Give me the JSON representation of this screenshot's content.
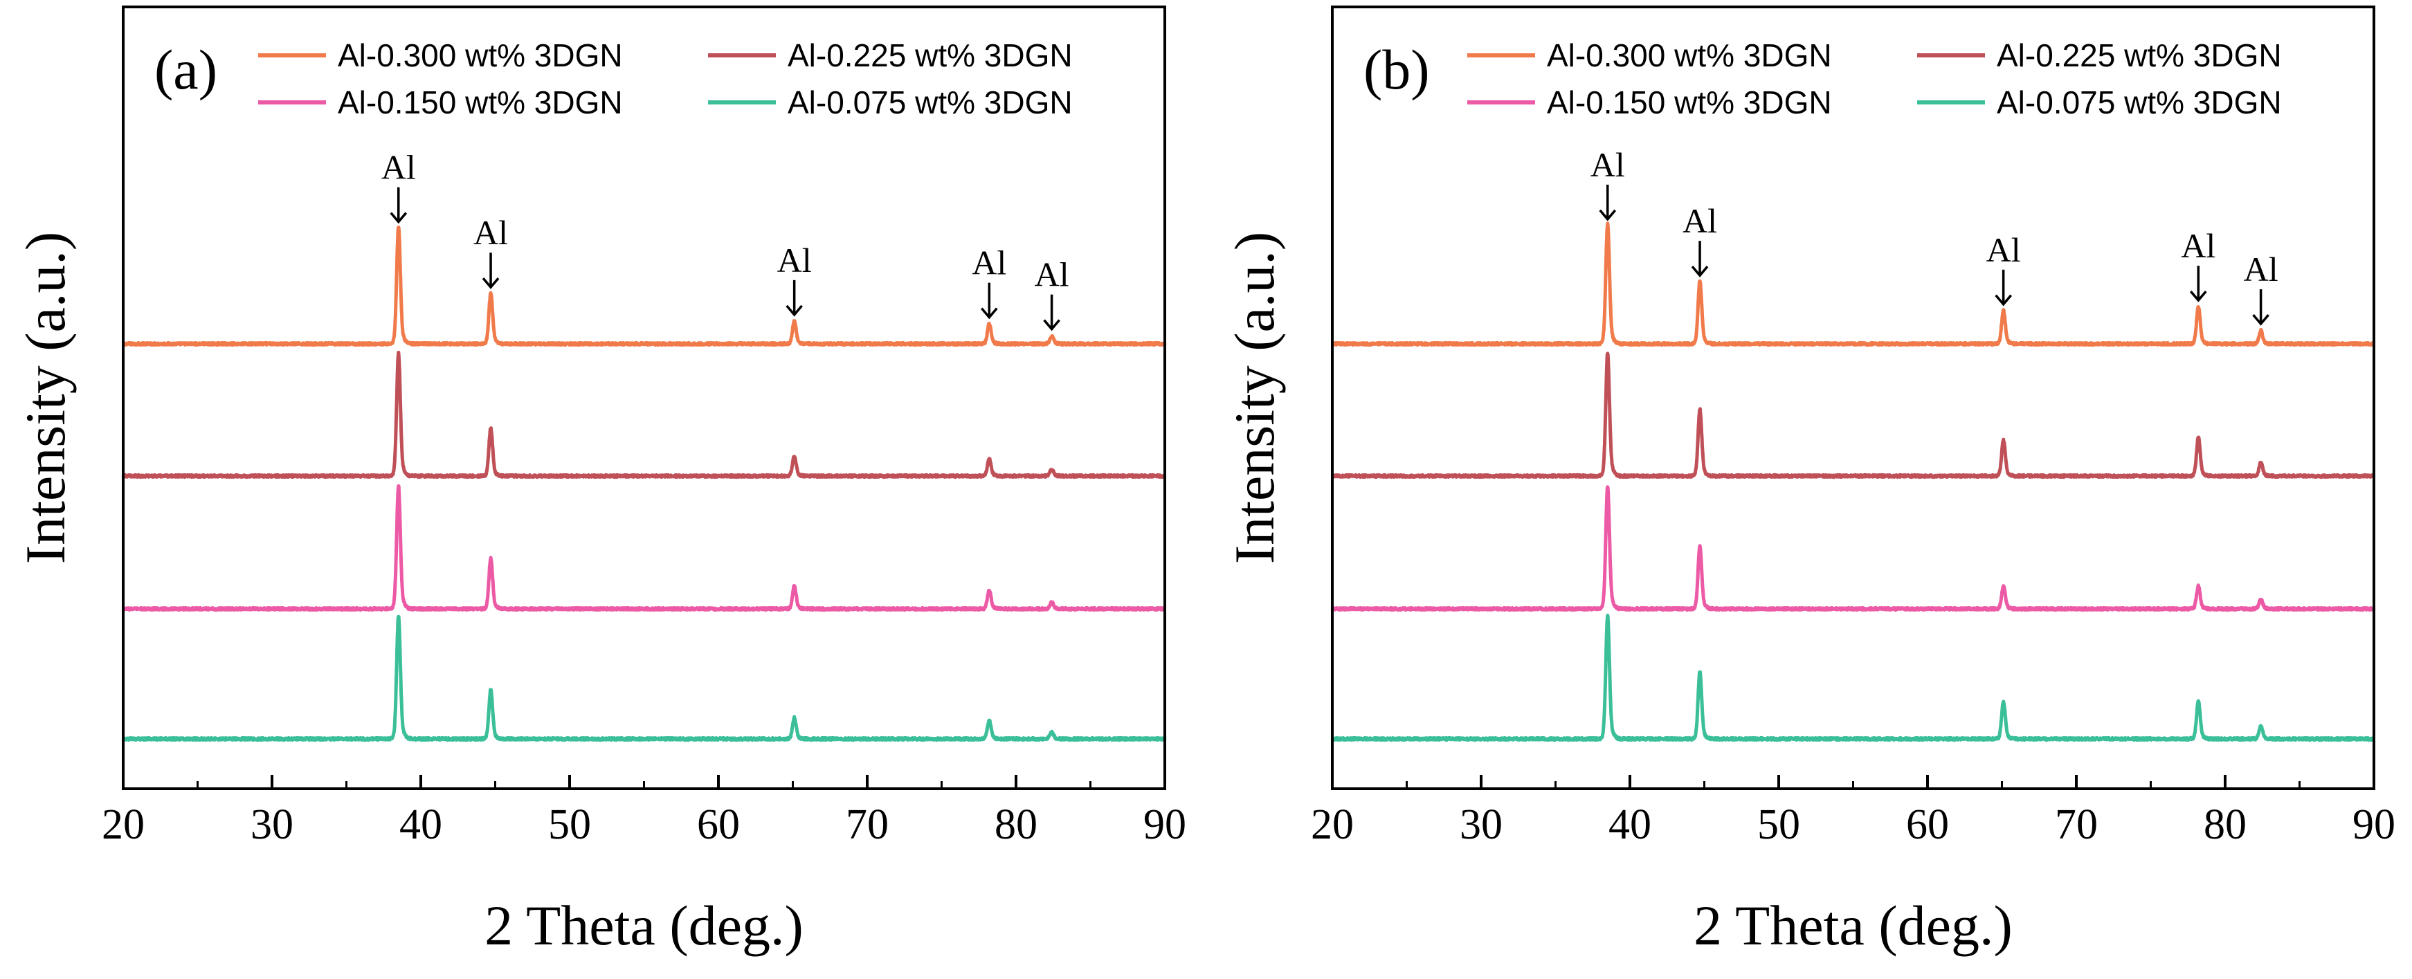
{
  "figure": {
    "description_free": true
  },
  "series_colors": {
    "Al-0.300 wt% 3DGN": "#f07a4a",
    "Al-0.225 wt% 3DGN": "#c05058",
    "Al-0.150 wt% 3DGN": "#ec5aa6",
    "Al-0.075 wt% 3DGN": "#3bbf99"
  },
  "chart_data": [
    {
      "type": "line",
      "panel_label": "(a)",
      "title": "",
      "xlabel": "2 Theta (deg.)",
      "ylabel": "Intensity (a.u.)",
      "xlim": [
        20,
        90
      ],
      "xticks": [
        20,
        30,
        40,
        50,
        60,
        70,
        80,
        90
      ],
      "yticks_labeled": false,
      "legend": {
        "placement": "top",
        "entries": [
          "Al-0.300 wt% 3DGN",
          "Al-0.225 wt% 3DGN",
          "Al-0.150 wt% 3DGN",
          "Al-0.075 wt% 3DGN"
        ]
      },
      "annotations": [
        {
          "text": "Al",
          "x": 38.5,
          "y": 1.0
        },
        {
          "text": "Al",
          "x": 44.7,
          "y": 0.6
        },
        {
          "text": "Al",
          "x": 65.1,
          "y": 0.35
        },
        {
          "text": "Al",
          "x": 78.2,
          "y": 0.35
        },
        {
          "text": "Al",
          "x": 82.4,
          "y": 0.25
        }
      ],
      "series": [
        {
          "name": "Al-0.300 wt% 3DGN",
          "color": "#f07a4a",
          "offset": 3.0,
          "peaks": [
            {
              "x": 38.5,
              "h": 0.88
            },
            {
              "x": 44.7,
              "h": 0.38
            },
            {
              "x": 65.1,
              "h": 0.17
            },
            {
              "x": 78.2,
              "h": 0.15
            },
            {
              "x": 82.4,
              "h": 0.06
            }
          ]
        },
        {
          "name": "Al-0.225 wt% 3DGN",
          "color": "#c05058",
          "offset": 2.0,
          "peaks": [
            {
              "x": 38.5,
              "h": 0.92
            },
            {
              "x": 44.7,
              "h": 0.36
            },
            {
              "x": 65.1,
              "h": 0.15
            },
            {
              "x": 78.2,
              "h": 0.13
            },
            {
              "x": 82.4,
              "h": 0.05
            }
          ]
        },
        {
          "name": "Al-0.150 wt% 3DGN",
          "color": "#ec5aa6",
          "offset": 1.0,
          "peaks": [
            {
              "x": 38.5,
              "h": 0.92
            },
            {
              "x": 44.7,
              "h": 0.38
            },
            {
              "x": 65.1,
              "h": 0.17
            },
            {
              "x": 78.2,
              "h": 0.14
            },
            {
              "x": 82.4,
              "h": 0.05
            }
          ]
        },
        {
          "name": "Al-0.075 wt% 3DGN",
          "color": "#3bbf99",
          "offset": 0.0,
          "peaks": [
            {
              "x": 38.5,
              "h": 0.92
            },
            {
              "x": 44.7,
              "h": 0.37
            },
            {
              "x": 65.1,
              "h": 0.16
            },
            {
              "x": 78.2,
              "h": 0.14
            },
            {
              "x": 82.4,
              "h": 0.05
            }
          ]
        }
      ]
    },
    {
      "type": "line",
      "panel_label": "(b)",
      "title": "",
      "xlabel": "2 Theta (deg.)",
      "ylabel": "Intensity (a.u.)",
      "xlim": [
        20,
        90
      ],
      "xticks": [
        20,
        30,
        40,
        50,
        60,
        70,
        80,
        90
      ],
      "yticks_labeled": false,
      "legend": {
        "placement": "top",
        "entries": [
          "Al-0.300 wt% 3DGN",
          "Al-0.225 wt% 3DGN",
          "Al-0.150 wt% 3DGN",
          "Al-0.075 wt% 3DGN"
        ]
      },
      "annotations": [
        {
          "text": "Al",
          "x": 38.5,
          "y": 1.0
        },
        {
          "text": "Al",
          "x": 44.7,
          "y": 0.7
        },
        {
          "text": "Al",
          "x": 65.1,
          "y": 0.5
        },
        {
          "text": "Al",
          "x": 78.2,
          "y": 0.5
        },
        {
          "text": "Al",
          "x": 82.4,
          "y": 0.45
        }
      ],
      "series": [
        {
          "name": "Al-0.300 wt% 3DGN",
          "color": "#f07a4a",
          "offset": 3.0,
          "peaks": [
            {
              "x": 38.5,
              "h": 0.9
            },
            {
              "x": 44.7,
              "h": 0.47
            },
            {
              "x": 65.1,
              "h": 0.25
            },
            {
              "x": 78.2,
              "h": 0.28
            },
            {
              "x": 82.4,
              "h": 0.1
            }
          ]
        },
        {
          "name": "Al-0.225 wt% 3DGN",
          "color": "#c05058",
          "offset": 2.0,
          "peaks": [
            {
              "x": 38.5,
              "h": 0.92
            },
            {
              "x": 44.7,
              "h": 0.5
            },
            {
              "x": 65.1,
              "h": 0.27
            },
            {
              "x": 78.2,
              "h": 0.29
            },
            {
              "x": 82.4,
              "h": 0.1
            }
          ]
        },
        {
          "name": "Al-0.150 wt% 3DGN",
          "color": "#ec5aa6",
          "offset": 1.0,
          "peaks": [
            {
              "x": 38.5,
              "h": 0.92
            },
            {
              "x": 44.7,
              "h": 0.47
            },
            {
              "x": 65.1,
              "h": 0.17
            },
            {
              "x": 78.2,
              "h": 0.17
            },
            {
              "x": 82.4,
              "h": 0.07
            }
          ]
        },
        {
          "name": "Al-0.075 wt% 3DGN",
          "color": "#3bbf99",
          "offset": 0.0,
          "peaks": [
            {
              "x": 38.5,
              "h": 0.92
            },
            {
              "x": 44.7,
              "h": 0.5
            },
            {
              "x": 65.1,
              "h": 0.28
            },
            {
              "x": 78.2,
              "h": 0.28
            },
            {
              "x": 82.4,
              "h": 0.1
            }
          ]
        }
      ]
    }
  ]
}
